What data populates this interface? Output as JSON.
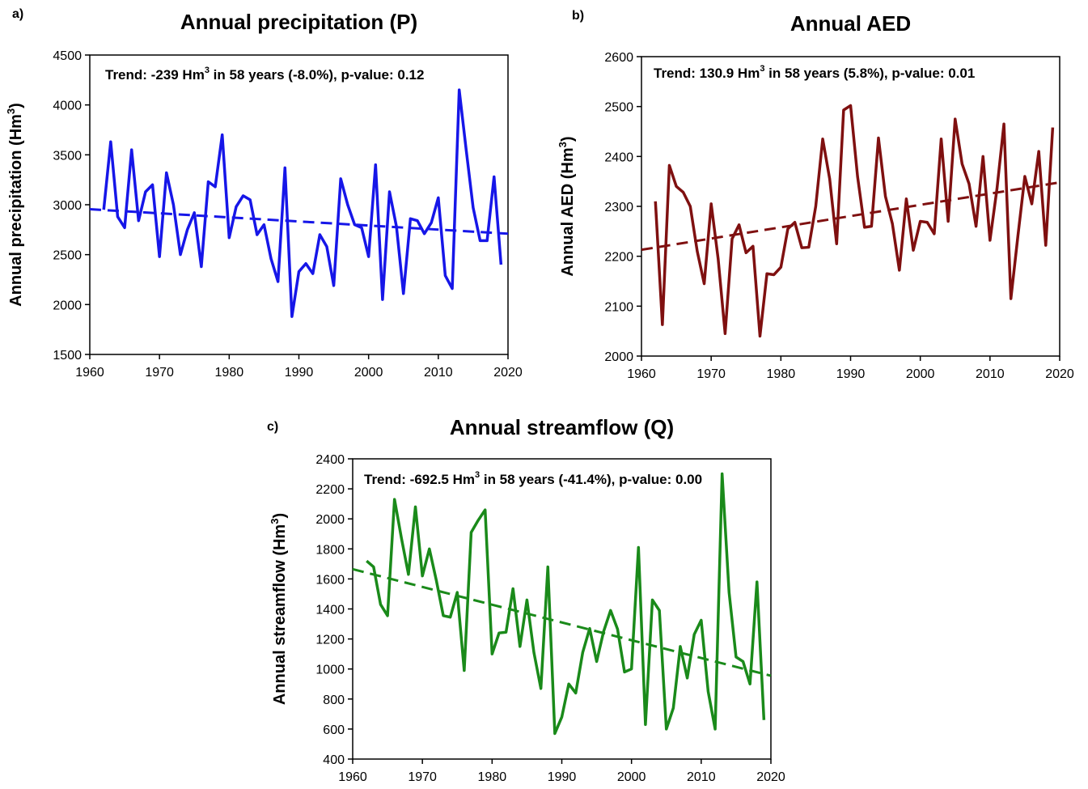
{
  "chart_data": [
    {
      "type": "line",
      "panel": "a)",
      "title": "Annual precipitation (P)",
      "y_label": [
        "Annual precipitation (Hm",
        "3",
        ")"
      ],
      "annotation": [
        "Trend: -239 Hm",
        "3",
        " in 58 years (-8.0%), p-value: 0.12"
      ],
      "x": [
        1962,
        1963,
        1964,
        1965,
        1966,
        1967,
        1968,
        1969,
        1970,
        1971,
        1972,
        1973,
        1974,
        1975,
        1976,
        1977,
        1978,
        1979,
        1980,
        1981,
        1982,
        1983,
        1984,
        1985,
        1986,
        1987,
        1988,
        1989,
        1990,
        1991,
        1992,
        1993,
        1994,
        1995,
        1996,
        1997,
        1998,
        1999,
        2000,
        2001,
        2002,
        2003,
        2004,
        2005,
        2006,
        2007,
        2008,
        2009,
        2010,
        2011,
        2012,
        2013,
        2014,
        2015,
        2016,
        2017,
        2018,
        2019
      ],
      "series": [
        {
          "color": "#1616e8",
          "values": [
            2950,
            3630,
            2880,
            2770,
            3550,
            2840,
            3130,
            3200,
            2480,
            3320,
            3000,
            2500,
            2750,
            2920,
            2380,
            3230,
            3180,
            3700,
            2670,
            2980,
            3090,
            3050,
            2700,
            2800,
            2460,
            2230,
            3370,
            1880,
            2330,
            2410,
            2310,
            2700,
            2580,
            2190,
            3260,
            3000,
            2800,
            2770,
            2480,
            3400,
            2050,
            3130,
            2780,
            2110,
            2860,
            2840,
            2710,
            2820,
            3070,
            2290,
            2160,
            4150,
            3550,
            2970,
            2640,
            2640,
            3280,
            2400
          ]
        }
      ],
      "trend": {
        "x": [
          1960,
          2020
        ],
        "values": [
          2955,
          2710
        ]
      },
      "xlim": [
        1960,
        2020
      ],
      "xticks": [
        1960,
        1970,
        1980,
        1990,
        2000,
        2010,
        2020
      ],
      "ylim": [
        1500,
        4500
      ],
      "yticks": [
        1500,
        2000,
        2500,
        3000,
        3500,
        4000,
        4500
      ]
    },
    {
      "type": "line",
      "panel": "b)",
      "title": "Annual AED",
      "y_label": [
        "Annual AED (Hm",
        "3",
        ")"
      ],
      "annotation": [
        "Trend: 130.9 Hm",
        "3",
        " in 58 years (5.8%), p-value: 0.01"
      ],
      "x": [
        1962,
        1963,
        1964,
        1965,
        1966,
        1967,
        1968,
        1969,
        1970,
        1971,
        1972,
        1973,
        1974,
        1975,
        1976,
        1977,
        1978,
        1979,
        1980,
        1981,
        1982,
        1983,
        1984,
        1985,
        1986,
        1987,
        1988,
        1989,
        1990,
        1991,
        1992,
        1993,
        1994,
        1995,
        1996,
        1997,
        1998,
        1999,
        2000,
        2001,
        2002,
        2003,
        2004,
        2005,
        2006,
        2007,
        2008,
        2009,
        2010,
        2011,
        2012,
        2013,
        2014,
        2015,
        2016,
        2017,
        2018,
        2019
      ],
      "series": [
        {
          "color": "#7f1010",
          "values": [
            2310,
            2063,
            2382,
            2340,
            2328,
            2300,
            2210,
            2145,
            2305,
            2195,
            2045,
            2235,
            2263,
            2207,
            2220,
            2040,
            2165,
            2163,
            2178,
            2255,
            2268,
            2217,
            2218,
            2300,
            2435,
            2355,
            2225,
            2493,
            2502,
            2360,
            2258,
            2260,
            2437,
            2320,
            2265,
            2172,
            2315,
            2212,
            2270,
            2268,
            2245,
            2435,
            2270,
            2475,
            2385,
            2345,
            2260,
            2400,
            2232,
            2335,
            2465,
            2115,
            2240,
            2360,
            2305,
            2410,
            2222,
            2458
          ]
        }
      ],
      "trend": {
        "x": [
          1960,
          2020
        ],
        "values": [
          2213,
          2348
        ]
      },
      "xlim": [
        1960,
        2020
      ],
      "xticks": [
        1960,
        1970,
        1980,
        1990,
        2000,
        2010,
        2020
      ],
      "ylim": [
        2000,
        2600
      ],
      "yticks": [
        2000,
        2100,
        2200,
        2300,
        2400,
        2500,
        2600
      ]
    },
    {
      "type": "line",
      "panel": "c)",
      "title": "Annual streamflow (Q)",
      "y_label": [
        "Annual streamflow (Hm",
        "3",
        ")"
      ],
      "annotation": [
        "Trend: -692.5 Hm",
        "3",
        " in 58 years (-41.4%), p-value: 0.00"
      ],
      "x": [
        1962,
        1963,
        1964,
        1965,
        1966,
        1967,
        1968,
        1969,
        1970,
        1971,
        1972,
        1973,
        1974,
        1975,
        1976,
        1977,
        1978,
        1979,
        1980,
        1981,
        1982,
        1983,
        1984,
        1985,
        1986,
        1987,
        1988,
        1989,
        1990,
        1991,
        1992,
        1993,
        1994,
        1995,
        1996,
        1997,
        1998,
        1999,
        2000,
        2001,
        2002,
        2003,
        2004,
        2005,
        2006,
        2007,
        2008,
        2009,
        2010,
        2011,
        2012,
        2013,
        2014,
        2015,
        2016,
        2017,
        2018,
        2019
      ],
      "series": [
        {
          "color": "#1a8a1a",
          "values": [
            1720,
            1680,
            1430,
            1355,
            2130,
            1870,
            1630,
            2080,
            1620,
            1800,
            1590,
            1355,
            1345,
            1510,
            990,
            1910,
            1990,
            2060,
            1100,
            1240,
            1245,
            1535,
            1150,
            1460,
            1110,
            870,
            1680,
            570,
            680,
            900,
            840,
            1110,
            1270,
            1050,
            1250,
            1390,
            1265,
            980,
            1000,
            1810,
            630,
            1460,
            1390,
            600,
            740,
            1150,
            940,
            1230,
            1325,
            850,
            600,
            2300,
            1510,
            1080,
            1050,
            900,
            1580,
            660
          ]
        }
      ],
      "trend": {
        "x": [
          1960,
          2020
        ],
        "values": [
          1665,
          955
        ]
      },
      "xlim": [
        1960,
        2020
      ],
      "xticks": [
        1960,
        1970,
        1980,
        1990,
        2000,
        2010,
        2020
      ],
      "ylim": [
        400,
        2400
      ],
      "yticks": [
        400,
        600,
        800,
        1000,
        1200,
        1400,
        1600,
        1800,
        2000,
        2200,
        2400
      ]
    }
  ]
}
